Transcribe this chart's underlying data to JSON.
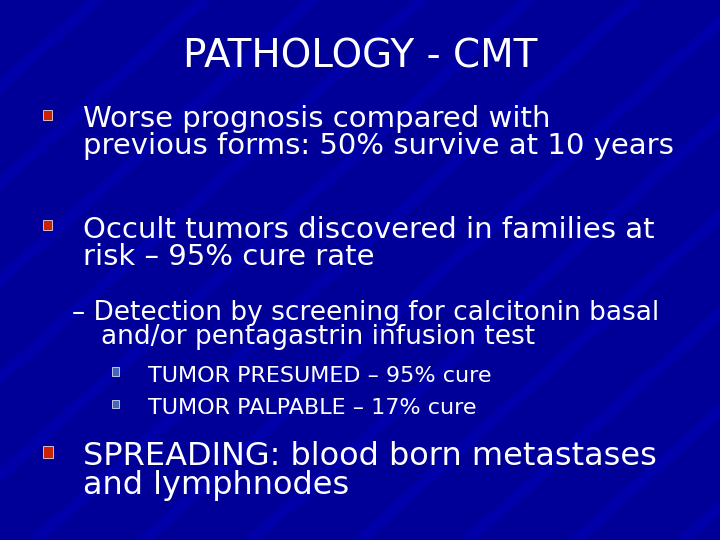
{
  "title": "PATHOLOGY - CMT",
  "background_color": "#000099",
  "title_color": "#FFFFFF",
  "title_fontsize": 28,
  "text_color": "#FFFFFF",
  "bullet_color_red": "#CC2200",
  "bullet_color_blue": "#4466BB",
  "bullet1_line1": "Worse prognosis compared with",
  "bullet1_line2": "previous forms: 50% survive at 10 years",
  "bullet2_line1": "Occult tumors discovered in families at",
  "bullet2_line2": "risk – 95% cure rate",
  "sub_bullet_line1": "– Detection by screening for calcitonin basal",
  "sub_bullet_line2": "and/or pentagastrin infusion test",
  "sub_sub_bullet1": "TUMOR PRESUMED – 95% cure",
  "sub_sub_bullet2": "TUMOR PALPABLE – 17% cure",
  "bullet3_line1": "SPREADING: blood born metastases",
  "bullet3_line2": "and lymphnodes",
  "main_fontsize": 21,
  "sub_fontsize": 19,
  "subsub_fontsize": 16,
  "title_weight": "normal",
  "main_weight": "normal"
}
